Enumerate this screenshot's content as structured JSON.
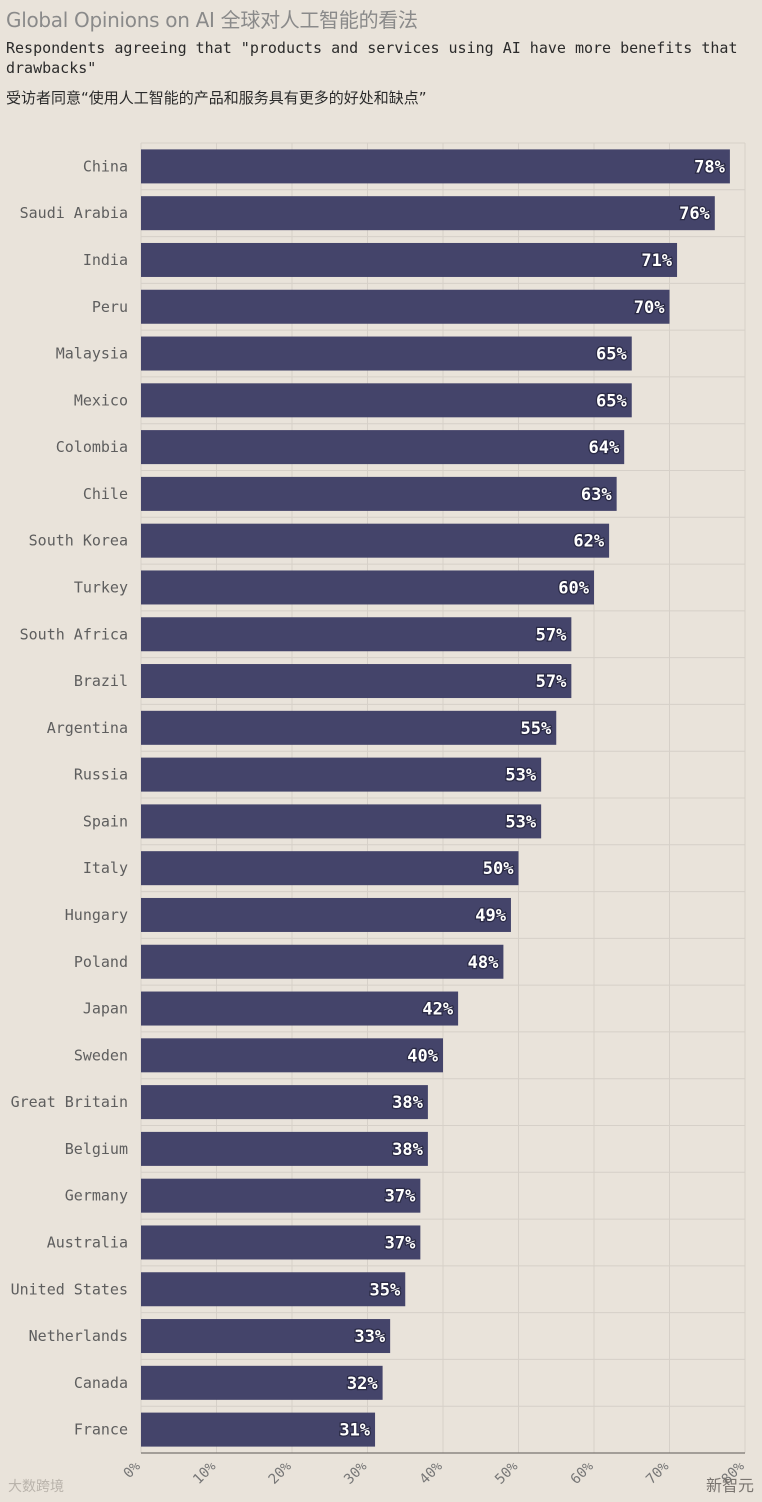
{
  "chart_data": {
    "type": "bar",
    "orientation": "horizontal",
    "title": "Global Opinions on AI 全球对人工智能的看法",
    "subtitle": "Respondents agreeing that \"products and services using AI have more benefits that drawbacks\"",
    "subtitle_cn": "受访者同意“使用人工智能的产品和服务具有更多的好处和缺点”",
    "categories": [
      "China",
      "Saudi Arabia",
      "India",
      "Peru",
      "Malaysia",
      "Mexico",
      "Colombia",
      "Chile",
      "South Korea",
      "Turkey",
      "South Africa",
      "Brazil",
      "Argentina",
      "Russia",
      "Spain",
      "Italy",
      "Hungary",
      "Poland",
      "Japan",
      "Sweden",
      "Great Britain",
      "Belgium",
      "Germany",
      "Australia",
      "United States",
      "Netherlands",
      "Canada",
      "France"
    ],
    "values": [
      78,
      76,
      71,
      70,
      65,
      65,
      64,
      63,
      62,
      60,
      57,
      57,
      55,
      53,
      53,
      50,
      49,
      48,
      42,
      40,
      38,
      38,
      37,
      37,
      35,
      33,
      32,
      31
    ],
    "value_labels": [
      "78%",
      "76%",
      "71%",
      "70%",
      "65%",
      "65%",
      "64%",
      "63%",
      "62%",
      "60%",
      "57%",
      "57%",
      "55%",
      "53%",
      "53%",
      "50%",
      "49%",
      "48%",
      "42%",
      "40%",
      "38%",
      "38%",
      "37%",
      "37%",
      "35%",
      "33%",
      "32%",
      "31%"
    ],
    "x_ticks": [
      0,
      10,
      20,
      30,
      40,
      50,
      60,
      70,
      80
    ],
    "x_tick_labels": [
      "0%",
      "10%",
      "20%",
      "30%",
      "40%",
      "50%",
      "60%",
      "70%",
      "80%"
    ],
    "xlim": [
      0,
      80
    ],
    "grid": true,
    "bar_color": "#44446a"
  },
  "watermarks": {
    "left": "大数跨境",
    "right": "新智元"
  }
}
